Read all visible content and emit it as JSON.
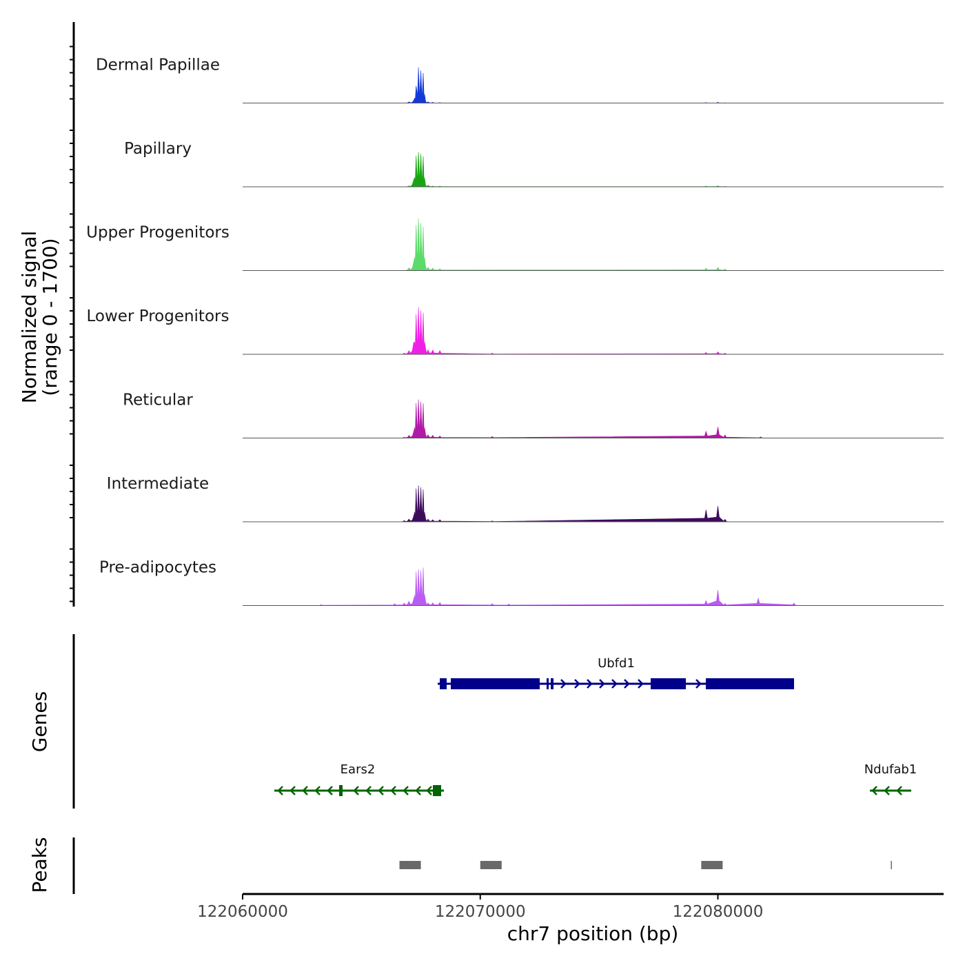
{
  "chart_data": {
    "type": "area",
    "title": "",
    "xlabel": "chr7 position (bp)",
    "ylabel": "Normalized signal\n(range 0 - 1700)",
    "xlim": [
      122060000,
      122089500
    ],
    "ylim": [
      0,
      1700
    ],
    "x_ticks": [
      122060000,
      122070000,
      122080000
    ],
    "x_tick_labels": [
      "122060000",
      "122070000",
      "122080000"
    ],
    "tracks": [
      {
        "name": "Dermal Papillae",
        "color": "#1339D6",
        "x": [
          122066800,
          122067000,
          122067200,
          122067300,
          122067400,
          122067500,
          122067600,
          122067700,
          122067800,
          122068000,
          122068300,
          122079500,
          122080000,
          122080300
        ],
        "values": [
          0,
          40,
          90,
          560,
          1160,
          1060,
          980,
          60,
          40,
          25,
          15,
          15,
          25,
          10
        ]
      },
      {
        "name": "Papillary",
        "color": "#19A513",
        "x": [
          122066800,
          122067000,
          122067200,
          122067300,
          122067400,
          122067500,
          122067600,
          122067700,
          122067800,
          122068000,
          122068300,
          122079500,
          122080000,
          122080300
        ],
        "values": [
          0,
          30,
          230,
          1010,
          1130,
          1070,
          990,
          50,
          50,
          25,
          20,
          20,
          30,
          15
        ]
      },
      {
        "name": "Upper Progenitors",
        "color": "#5CDA6A",
        "x": [
          122066800,
          122067000,
          122067200,
          122067300,
          122067400,
          122067500,
          122067600,
          122067700,
          122067800,
          122068000,
          122068300,
          122079500,
          122080000,
          122080300
        ],
        "values": [
          0,
          90,
          280,
          1480,
          1700,
          1550,
          1430,
          140,
          110,
          80,
          60,
          80,
          100,
          50
        ]
      },
      {
        "name": "Lower Progenitors",
        "color": "#F01FE6",
        "x": [
          122066800,
          122067000,
          122067200,
          122067300,
          122067400,
          122067500,
          122067600,
          122067700,
          122067800,
          122068000,
          122068300,
          122070500,
          122079500,
          122080000,
          122080300
        ],
        "values": [
          40,
          120,
          390,
          1300,
          1530,
          1420,
          1350,
          200,
          150,
          140,
          120,
          40,
          60,
          80,
          40
        ]
      },
      {
        "name": "Reticular",
        "color": "#B01AA6",
        "x": [
          122066800,
          122067000,
          122067200,
          122067300,
          122067400,
          122067500,
          122067600,
          122067700,
          122067800,
          122068000,
          122068300,
          122070500,
          122079500,
          122080000,
          122080300,
          122081800
        ],
        "values": [
          30,
          90,
          210,
          1130,
          1250,
          1180,
          1130,
          120,
          110,
          90,
          70,
          50,
          220,
          360,
          100,
          40
        ]
      },
      {
        "name": "Intermediate",
        "color": "#3D0B5C",
        "x": [
          122066800,
          122067000,
          122067200,
          122067300,
          122067400,
          122067500,
          122067600,
          122067700,
          122067800,
          122068000,
          122068300,
          122070500,
          122079500,
          122080000,
          122080300
        ],
        "values": [
          40,
          90,
          190,
          1080,
          1180,
          1120,
          1050,
          100,
          90,
          70,
          70,
          30,
          390,
          510,
          80
        ]
      },
      {
        "name": "Pre-adipocytes",
        "color": "#B95CF2",
        "x": [
          122063300,
          122066400,
          122066800,
          122067000,
          122067200,
          122067300,
          122067400,
          122067500,
          122067600,
          122067700,
          122067800,
          122068000,
          122068300,
          122070500,
          122071200,
          122079500,
          122080000,
          122080300,
          122081700,
          122083200
        ],
        "values": [
          30,
          60,
          80,
          140,
          210,
          1100,
          1180,
          1140,
          1230,
          140,
          90,
          90,
          100,
          60,
          50,
          160,
          500,
          70,
          240,
          80
        ]
      }
    ],
    "genes": [
      {
        "name": "Ubfd1",
        "strand": "+",
        "color": "#00008B"
      },
      {
        "name": "Ears2",
        "strand": "-",
        "color": "#006400"
      },
      {
        "name": "Ndufab1",
        "strand": "-",
        "color": "#006400"
      }
    ],
    "genes_label": "Genes",
    "peaks_label": "Peaks",
    "peaks_color": "#696969",
    "peaks": [
      {
        "start": 122066600,
        "end": 122067500
      },
      {
        "start": 122070000,
        "end": 122070900
      },
      {
        "start": 122079300,
        "end": 122080200
      },
      {
        "start": 122087280,
        "end": 122087320
      }
    ]
  }
}
